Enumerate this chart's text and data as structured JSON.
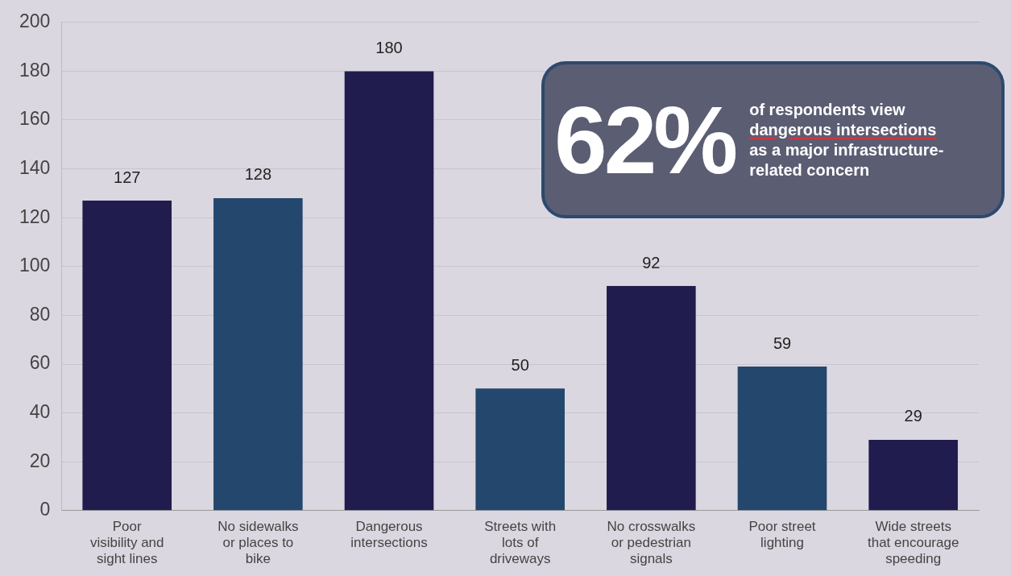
{
  "chart_data": {
    "type": "bar",
    "categories": [
      "Poor visibility and sight lines",
      "No sidewalks or places to bike",
      "Dangerous intersections",
      "Streets with lots of driveways",
      "No crosswalks or pedestrian signals",
      "Poor street lighting",
      "Wide streets that encourage speeding"
    ],
    "values": [
      127,
      128,
      180,
      50,
      92,
      59,
      29
    ],
    "colors": [
      "#211c4e",
      "#24476d",
      "#211c4e",
      "#24476d",
      "#211c4e",
      "#24476d",
      "#211c4e"
    ],
    "ylim": [
      0,
      200
    ],
    "yticks": [
      0,
      20,
      40,
      60,
      80,
      100,
      120,
      140,
      160,
      180,
      200
    ],
    "grid": "y",
    "data_labels": true,
    "annotations": [
      "62%",
      "of respondents view",
      "dangerous intersections",
      "as a major infrastructure-related concern"
    ]
  }
}
